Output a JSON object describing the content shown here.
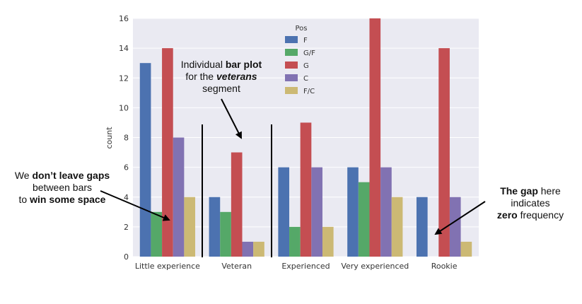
{
  "chart_data": {
    "type": "bar",
    "categories": [
      "Little experience",
      "Veteran",
      "Experienced",
      "Very experienced",
      "Rookie"
    ],
    "series": [
      {
        "name": "F",
        "color": "#4c72b0",
        "values": [
          13,
          4,
          6,
          6,
          4
        ]
      },
      {
        "name": "G/F",
        "color": "#55a868",
        "values": [
          3,
          3,
          2,
          5,
          0
        ]
      },
      {
        "name": "G",
        "color": "#c44e52",
        "values": [
          14,
          7,
          9,
          16,
          14
        ]
      },
      {
        "name": "C",
        "color": "#8172b2",
        "values": [
          8,
          1,
          6,
          6,
          4
        ]
      },
      {
        "name": "F/C",
        "color": "#ccb974",
        "values": [
          4,
          1,
          2,
          4,
          1
        ]
      }
    ],
    "title": "",
    "xlabel": "",
    "ylabel": "count",
    "ylim": [
      0,
      16
    ],
    "yticks": [
      0,
      2,
      4,
      6,
      8,
      10,
      12,
      14,
      16
    ],
    "legend_title": "Pos",
    "legend_position": "top-center",
    "grid": true,
    "background_color": "#eaeaf2"
  },
  "annotations": {
    "left": {
      "line1_plain": "We ",
      "line1_bold": "don’t leave gaps",
      "line2": "between bars",
      "line3_plain": "to ",
      "line3_bold": "win some space"
    },
    "top": {
      "line1_plain": "Individual ",
      "line1_bold": "bar plot",
      "line2_plain": "for the ",
      "line2_bolditalic": "veterans",
      "line3": "segment"
    },
    "right": {
      "line1_bold": "The gap",
      "line1_plain": " here",
      "line2": "indicates",
      "line3_bold": "zero",
      "line3_plain": " frequency"
    }
  }
}
